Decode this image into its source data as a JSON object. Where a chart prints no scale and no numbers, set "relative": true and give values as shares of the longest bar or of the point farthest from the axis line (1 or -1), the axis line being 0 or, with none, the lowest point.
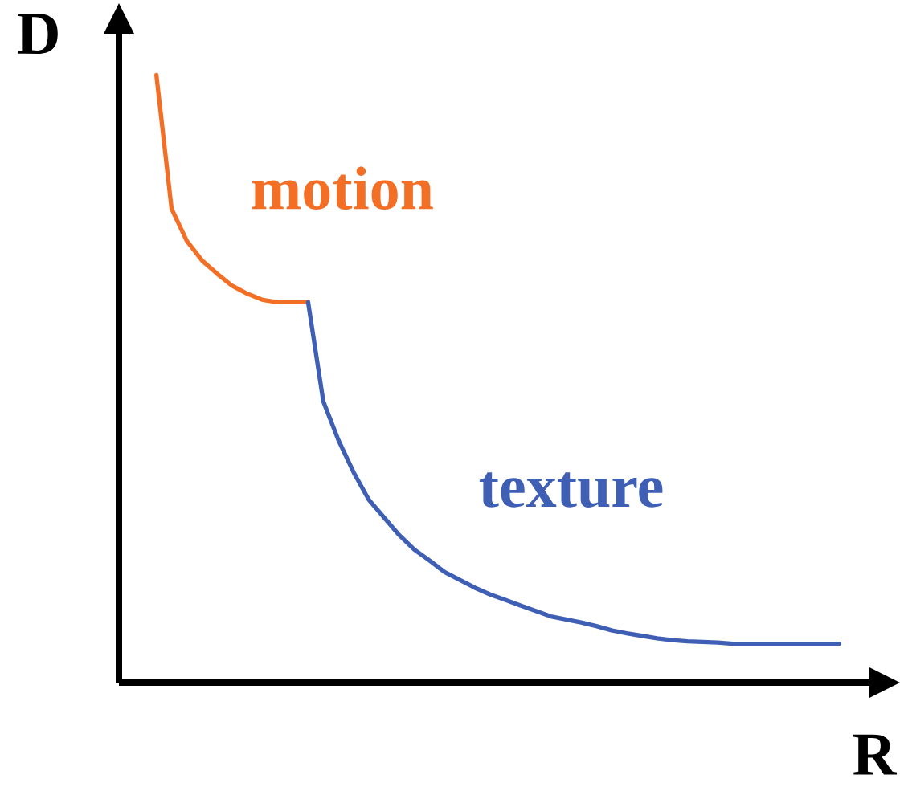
{
  "chart_data": {
    "type": "line",
    "xlabel": "R",
    "ylabel": "D",
    "relative": true,
    "categories": [
      null,
      null,
      null,
      null,
      null,
      null,
      null,
      null,
      null,
      null,
      null,
      null,
      null,
      null,
      null,
      null,
      null,
      null,
      null,
      null,
      null,
      null,
      null,
      null,
      null,
      null,
      null,
      null,
      null,
      null,
      null,
      null,
      null,
      null,
      null,
      null,
      null,
      null,
      null,
      null,
      null,
      null,
      null,
      null,
      null,
      null
    ],
    "series": [
      {
        "name": "motion",
        "color": "#f26f25",
        "values": [
          1.0,
          0.78,
          0.727,
          0.695,
          0.673,
          0.653,
          0.64,
          0.63,
          0.626,
          0.626,
          0.626,
          null,
          null,
          null,
          null,
          null,
          null,
          null,
          null,
          null,
          null,
          null,
          null,
          null,
          null,
          null,
          null,
          null,
          null,
          null,
          null,
          null,
          null,
          null,
          null,
          null,
          null,
          null,
          null,
          null,
          null,
          null,
          null,
          null,
          null,
          null
        ]
      },
      {
        "name": "texture",
        "color": "#3f5fb5",
        "values": [
          null,
          null,
          null,
          null,
          null,
          null,
          null,
          null,
          null,
          null,
          0.626,
          0.463,
          0.399,
          0.346,
          0.301,
          0.272,
          0.243,
          0.219,
          0.201,
          0.182,
          0.169,
          0.156,
          0.145,
          0.136,
          0.127,
          0.118,
          0.109,
          0.104,
          0.099,
          0.093,
          0.086,
          0.081,
          0.077,
          0.073,
          0.07,
          0.068,
          0.067,
          0.066,
          0.064,
          0.064,
          0.064,
          0.064,
          0.064,
          0.064,
          0.064,
          0.064
        ]
      }
    ]
  }
}
